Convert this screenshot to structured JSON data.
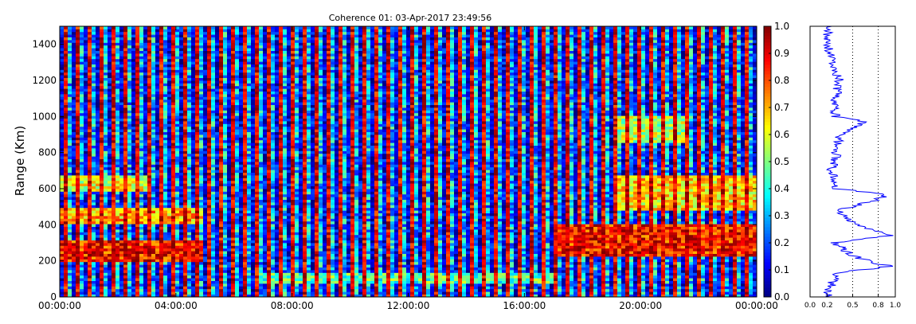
{
  "chart_data": [
    {
      "type": "heatmap",
      "title": "Coherence 01: 03-Apr-2017 23:49:56",
      "ylabel": "Range (Km)",
      "xlabel": "",
      "x_ticks": [
        "00:00:00",
        "04:00:00",
        "08:00:00",
        "12:00:00",
        "16:00:00",
        "20:00:00",
        "00:00:00"
      ],
      "xlim": [
        "00:00:00",
        "24:00:00"
      ],
      "y_ticks": [
        0,
        200,
        400,
        600,
        800,
        1000,
        1200,
        1400
      ],
      "ylim": [
        0,
        1500
      ],
      "colorbar": {
        "colormap": "jet",
        "range": [
          0.0,
          1.0
        ],
        "ticks": [
          "0.0",
          "0.1",
          "0.2",
          "0.3",
          "0.4",
          "0.5",
          "0.6",
          "0.7",
          "0.8",
          "0.9",
          "1.0"
        ]
      },
      "grid": false,
      "features": [
        {
          "range_km": [
            200,
            320
          ],
          "time_h": [
            0,
            5
          ],
          "coherence": 0.85
        },
        {
          "range_km": [
            400,
            500
          ],
          "time_h": [
            0,
            5
          ],
          "coherence": 0.7
        },
        {
          "range_km": [
            580,
            680
          ],
          "time_h": [
            0,
            3
          ],
          "coherence": 0.6
        },
        {
          "range_km": [
            230,
            400
          ],
          "time_h": [
            17,
            24
          ],
          "coherence": 0.85
        },
        {
          "range_km": [
            480,
            680
          ],
          "time_h": [
            19,
            24
          ],
          "coherence": 0.65
        },
        {
          "range_km": [
            850,
            1000
          ],
          "time_h": [
            19,
            21.5
          ],
          "coherence": 0.55
        },
        {
          "range_km": [
            80,
            140
          ],
          "time_h": [
            7,
            17
          ],
          "coherence": 0.45
        }
      ]
    },
    {
      "type": "line",
      "title": "",
      "xlabel": "",
      "ylabel": "",
      "x_ticks": [
        "0.0",
        "0.2",
        "0.5",
        "0.8",
        "1.0"
      ],
      "xlim": [
        0.0,
        1.0
      ],
      "ylim": [
        0,
        1500
      ],
      "grid": "vertical dotted",
      "series": [
        {
          "range_km": [
            0,
            50,
            100,
            130,
            150,
            170,
            190,
            220,
            260,
            300,
            320,
            340,
            400,
            450,
            480,
            500,
            540,
            570,
            600,
            700,
            780,
            900,
            950,
            970,
            1000,
            1100,
            1200,
            1300,
            1400,
            1500
          ],
          "values": [
            0.2,
            0.22,
            0.3,
            0.25,
            0.6,
            0.95,
            0.75,
            0.55,
            0.4,
            0.3,
            0.55,
            0.95,
            0.55,
            0.4,
            0.35,
            0.5,
            0.8,
            0.9,
            0.3,
            0.25,
            0.3,
            0.35,
            0.55,
            0.65,
            0.3,
            0.3,
            0.35,
            0.25,
            0.2,
            0.2
          ]
        }
      ]
    }
  ]
}
